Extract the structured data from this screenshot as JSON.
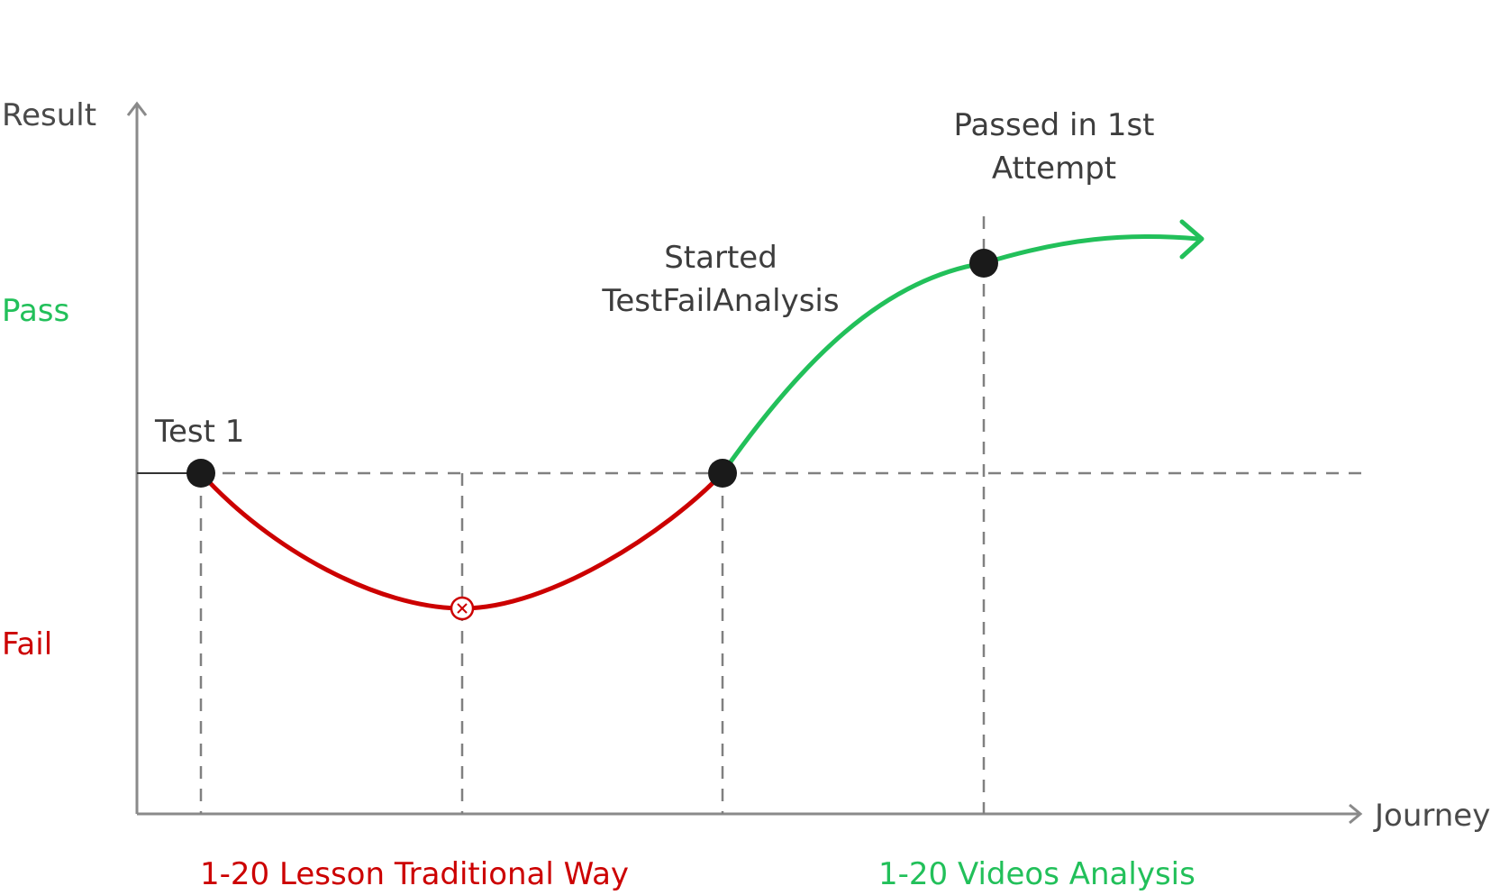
{
  "axes": {
    "y_title": "Result",
    "x_title": "Journey"
  },
  "levels": {
    "pass": "Pass",
    "fail": "Fail"
  },
  "annotations": {
    "test1": "Test 1",
    "started_line1": "Started",
    "started_line2": "TestFailAnalysis",
    "passed_line1": "Passed in 1st",
    "passed_line2": "Attempt"
  },
  "phases": {
    "traditional": "1-20 Lesson Traditional Way",
    "videos": "1-20 Videos Analysis"
  },
  "colors": {
    "fail": "#cc0000",
    "pass": "#22c05a",
    "axis": "#8a8a8a",
    "dashed": "#808080",
    "milestone": "#1a1a1a"
  },
  "icons": {
    "fail_marker": "circle-x-icon"
  }
}
